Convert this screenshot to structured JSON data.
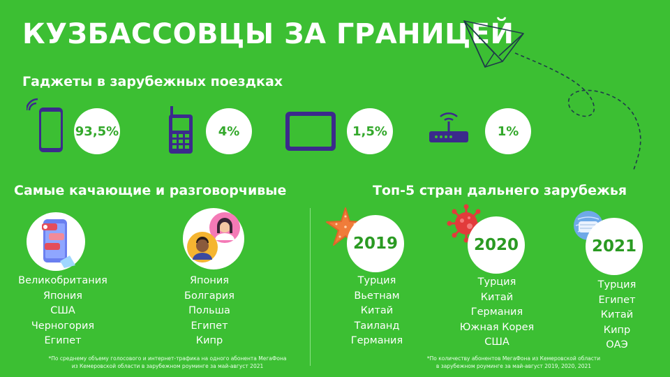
{
  "title": "КУЗБАССОВЦЫ ЗА ГРАНИЦЕЙ",
  "gadgets": {
    "heading": "Гаджеты в зарубежных поездках",
    "items": [
      {
        "icon": "smartphone-icon",
        "percent": "93,5%"
      },
      {
        "icon": "feature-phone-icon",
        "percent": "4%"
      },
      {
        "icon": "tablet-icon",
        "percent": "1,5%"
      },
      {
        "icon": "router-icon",
        "percent": "1%"
      }
    ]
  },
  "active_users": {
    "heading": "Самые качающие и разговорчивые",
    "data_list": [
      "Великобритания",
      "Япония",
      "США",
      "Черногория",
      "Египет"
    ],
    "voice_list": [
      "Япония",
      "Болгария",
      "Польша",
      "Египет",
      "Кипр"
    ],
    "footnote_line1": "*По среднему объему голосового и интернет-трафика на одного абонента МегаФона",
    "footnote_line2": "из Кемеровской области в зарубежном роуминге за май-август 2021"
  },
  "top_countries": {
    "heading": "Топ-5 стран дальнего зарубежья",
    "years": [
      {
        "year": "2019",
        "icon": "starfish-icon",
        "countries": [
          "Турция",
          "Вьетнам",
          "Китай",
          "Таиланд",
          "Германия"
        ]
      },
      {
        "year": "2020",
        "icon": "virus-icon",
        "countries": [
          "Турция",
          "Китай",
          "Германия",
          "Южная Корея",
          "США"
        ]
      },
      {
        "year": "2021",
        "icon": "face-mask-icon",
        "countries": [
          "Турция",
          "Египет",
          "Китай",
          "Кипр",
          "ОАЭ"
        ]
      }
    ],
    "footnote_line1": "*По количеству абонентов МегаФона из Кемеровской области",
    "footnote_line2": "в зарубежном роуминге за май-август 2019, 2020, 2021"
  },
  "colors": {
    "background": "#3cbf33",
    "accent_dark": "#3b2a8c",
    "circle": "#ffffff",
    "percent_text": "#33a82b"
  }
}
